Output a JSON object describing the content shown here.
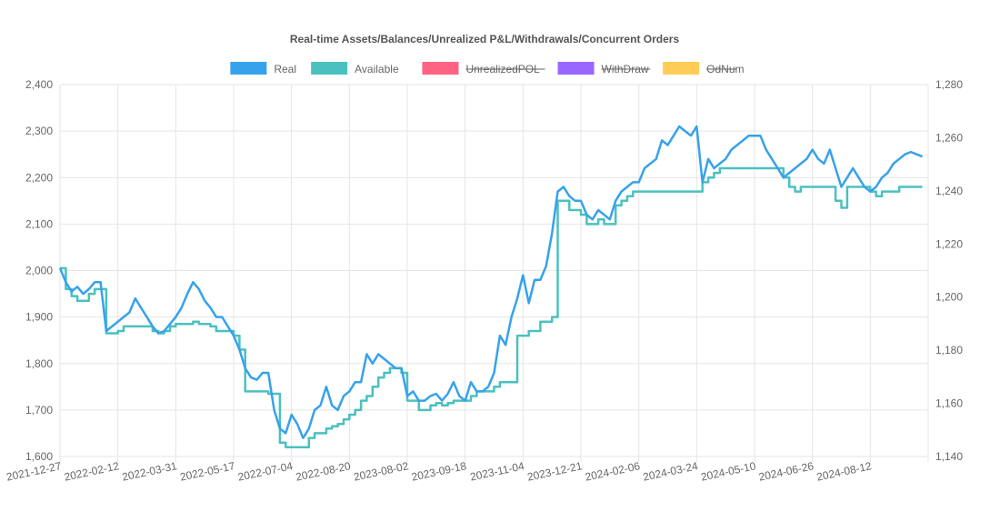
{
  "chart_data": {
    "type": "line",
    "title": "Real-time Assets/Balances/Unrealized P&L/Withdrawals/Concurrent Orders",
    "x_tick_labels": [
      "2021-12-27",
      "2022-02-12",
      "2022-03-31",
      "2022-05-17",
      "2022-07-04",
      "2022-08-20",
      "2023-08-02",
      "2023-09-18",
      "2023-11-04",
      "2023-12-21",
      "2024-02-06",
      "2024-03-24",
      "2024-05-10",
      "2024-06-26",
      "2024-08-12"
    ],
    "y_left": {
      "min": 1600,
      "max": 2400,
      "step": 100,
      "tick_labels": [
        "1,600",
        "1,700",
        "1,800",
        "1,900",
        "2,000",
        "2,100",
        "2,200",
        "2,300",
        "2,400"
      ]
    },
    "y_right": {
      "min": 1140,
      "max": 1280,
      "step": 20,
      "tick_labels": [
        "1,140",
        "1,160",
        "1,180",
        "1,200",
        "1,220",
        "1,240",
        "1,260",
        "1,280"
      ]
    },
    "grid": true,
    "legend_position": "top-center",
    "legend": [
      {
        "label": "Real",
        "color": "#36a2eb",
        "hidden": false
      },
      {
        "label": "Available",
        "color": "#4bc0c0",
        "hidden": false
      },
      {
        "label": "UnrealizedPOL",
        "color": "#ff6384",
        "hidden": true
      },
      {
        "label": "WithDraw",
        "color": "#9966ff",
        "hidden": true
      },
      {
        "label": "OdNum",
        "color": "#ffcd56",
        "hidden": true
      }
    ],
    "series": [
      {
        "name": "Real",
        "color": "#36a2eb",
        "axis": "left",
        "x": [
          0,
          0.1,
          0.2,
          0.3,
          0.4,
          0.5,
          0.6,
          0.7,
          0.8,
          0.9,
          1,
          1.1,
          1.2,
          1.3,
          1.4,
          1.5,
          1.6,
          1.7,
          1.8,
          1.9,
          2,
          2.1,
          2.2,
          2.3,
          2.4,
          2.5,
          2.6,
          2.7,
          2.8,
          2.9,
          3,
          3.1,
          3.2,
          3.3,
          3.4,
          3.5,
          3.6,
          3.7,
          3.8,
          3.9,
          4,
          4.1,
          4.2,
          4.3,
          4.4,
          4.5,
          4.6,
          4.7,
          4.8,
          4.9,
          5,
          5.1,
          5.2,
          5.3,
          5.4,
          5.5,
          5.6,
          5.7,
          5.8,
          5.9,
          6,
          6.1,
          6.2,
          6.3,
          6.4,
          6.5,
          6.6,
          6.7,
          6.8,
          6.9,
          7,
          7.1,
          7.2,
          7.3,
          7.4,
          7.5,
          7.6,
          7.7,
          7.8,
          7.9,
          8,
          8.1,
          8.2,
          8.3,
          8.4,
          8.5,
          8.6,
          8.7,
          8.8,
          8.9,
          9,
          9.1,
          9.2,
          9.3,
          9.4,
          9.5,
          9.6,
          9.7,
          9.8,
          9.9,
          10,
          10.1,
          10.2,
          10.3,
          10.4,
          10.5,
          10.6,
          10.7,
          10.8,
          10.9,
          11,
          11.1,
          11.2,
          11.3,
          11.4,
          11.5,
          11.6,
          11.7,
          11.8,
          11.9,
          12,
          12.1,
          12.2,
          12.3,
          12.4,
          12.5,
          12.6,
          12.7,
          12.8,
          12.9,
          13,
          13.1,
          13.2,
          13.3,
          13.4,
          13.5,
          13.6,
          13.7,
          13.8,
          13.9,
          14,
          14.1,
          14.2,
          14.3,
          14.4,
          14.5,
          14.6,
          14.7,
          14.8,
          14.9
        ],
        "values": [
          2005,
          1975,
          1955,
          1965,
          1950,
          1960,
          1975,
          1975,
          1870,
          1880,
          1890,
          1900,
          1910,
          1940,
          1920,
          1900,
          1880,
          1865,
          1870,
          1885,
          1900,
          1920,
          1950,
          1975,
          1960,
          1935,
          1920,
          1900,
          1900,
          1880,
          1860,
          1830,
          1790,
          1770,
          1765,
          1780,
          1780,
          1700,
          1660,
          1650,
          1690,
          1670,
          1640,
          1660,
          1700,
          1710,
          1750,
          1710,
          1700,
          1730,
          1740,
          1760,
          1760,
          1820,
          1800,
          1820,
          1810,
          1800,
          1790,
          1790,
          1730,
          1740,
          1720,
          1720,
          1730,
          1735,
          1720,
          1735,
          1760,
          1730,
          1720,
          1760,
          1740,
          1740,
          1750,
          1780,
          1860,
          1840,
          1900,
          1940,
          1990,
          1930,
          1980,
          1980,
          2010,
          2080,
          2170,
          2180,
          2160,
          2150,
          2150,
          2120,
          2110,
          2130,
          2120,
          2110,
          2150,
          2170,
          2180,
          2190,
          2190,
          2220,
          2230,
          2240,
          2280,
          2270,
          2290,
          2310,
          2300,
          2290,
          2310,
          2190,
          2240,
          2220,
          2230,
          2240,
          2260,
          2270,
          2280,
          2290,
          2290,
          2290,
          2260,
          2240,
          2220,
          2200,
          2210,
          2220,
          2230,
          2240,
          2260,
          2240,
          2230,
          2260,
          2220,
          2180,
          2200,
          2220,
          2200,
          2180,
          2170,
          2180,
          2200,
          2210,
          2230,
          2240,
          2250,
          2255,
          2250,
          2245
        ]
      },
      {
        "name": "Available",
        "color": "#4bc0c0",
        "axis": "left",
        "x": [
          0,
          0.1,
          0.2,
          0.3,
          0.4,
          0.5,
          0.6,
          0.7,
          0.8,
          0.9,
          1,
          1.1,
          1.2,
          1.3,
          1.4,
          1.5,
          1.6,
          1.7,
          1.8,
          1.9,
          2,
          2.1,
          2.2,
          2.3,
          2.4,
          2.5,
          2.6,
          2.7,
          2.8,
          2.9,
          3,
          3.1,
          3.2,
          3.3,
          3.4,
          3.5,
          3.6,
          3.7,
          3.8,
          3.9,
          4,
          4.1,
          4.2,
          4.3,
          4.4,
          4.5,
          4.6,
          4.7,
          4.8,
          4.9,
          5,
          5.1,
          5.2,
          5.3,
          5.4,
          5.5,
          5.6,
          5.7,
          5.8,
          5.9,
          6,
          6.1,
          6.2,
          6.3,
          6.4,
          6.5,
          6.6,
          6.7,
          6.8,
          6.9,
          7,
          7.1,
          7.2,
          7.3,
          7.4,
          7.5,
          7.6,
          7.7,
          7.8,
          7.9,
          8,
          8.1,
          8.2,
          8.3,
          8.4,
          8.5,
          8.6,
          8.7,
          8.8,
          8.9,
          9,
          9.1,
          9.2,
          9.3,
          9.4,
          9.5,
          9.6,
          9.7,
          9.8,
          9.9,
          10,
          10.1,
          10.2,
          10.3,
          10.4,
          10.5,
          10.6,
          10.7,
          10.8,
          10.9,
          11,
          11.1,
          11.2,
          11.3,
          11.4,
          11.5,
          11.6,
          11.7,
          11.8,
          11.9,
          12,
          12.1,
          12.2,
          12.3,
          12.4,
          12.5,
          12.6,
          12.7,
          12.8,
          12.9,
          13,
          13.1,
          13.2,
          13.3,
          13.4,
          13.5,
          13.6,
          13.7,
          13.8,
          13.9,
          14,
          14.1,
          14.2,
          14.3,
          14.4,
          14.5,
          14.6,
          14.7,
          14.8,
          14.9
        ],
        "values": [
          2005,
          1960,
          1945,
          1935,
          1935,
          1950,
          1960,
          1960,
          1865,
          1865,
          1870,
          1880,
          1880,
          1880,
          1880,
          1880,
          1870,
          1865,
          1870,
          1880,
          1885,
          1885,
          1885,
          1890,
          1885,
          1885,
          1880,
          1870,
          1870,
          1870,
          1860,
          1830,
          1740,
          1740,
          1740,
          1740,
          1735,
          1735,
          1630,
          1620,
          1620,
          1620,
          1620,
          1640,
          1650,
          1650,
          1660,
          1665,
          1670,
          1680,
          1690,
          1700,
          1720,
          1730,
          1750,
          1770,
          1780,
          1790,
          1790,
          1780,
          1720,
          1720,
          1700,
          1700,
          1710,
          1715,
          1710,
          1715,
          1720,
          1720,
          1720,
          1730,
          1740,
          1740,
          1740,
          1750,
          1760,
          1760,
          1760,
          1860,
          1860,
          1870,
          1870,
          1890,
          1890,
          1900,
          2150,
          2150,
          2130,
          2130,
          2120,
          2100,
          2100,
          2110,
          2100,
          2100,
          2140,
          2150,
          2160,
          2170,
          2170,
          2170,
          2170,
          2170,
          2170,
          2170,
          2170,
          2170,
          2170,
          2170,
          2170,
          2190,
          2200,
          2210,
          2220,
          2220,
          2220,
          2220,
          2220,
          2220,
          2220,
          2220,
          2220,
          2220,
          2220,
          2200,
          2180,
          2170,
          2180,
          2180,
          2180,
          2180,
          2180,
          2180,
          2150,
          2135,
          2180,
          2180,
          2180,
          2180,
          2170,
          2160,
          2170,
          2170,
          2170,
          2180,
          2180,
          2180,
          2180,
          2180
        ]
      }
    ]
  }
}
